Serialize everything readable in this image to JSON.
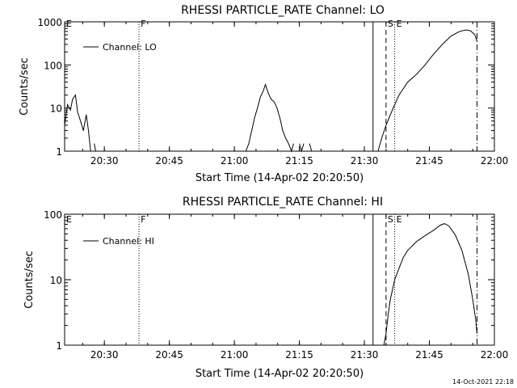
{
  "footer": {
    "timestamp": "14-Oct-2021 22:18"
  },
  "chart_data": [
    {
      "type": "line",
      "title": "RHESSI PARTICLE_RATE Channel: LO",
      "xlabel": "Start Time (14-Apr-02 20:20:50)",
      "ylabel": "Counts/sec",
      "yscale": "log",
      "ylim": [
        1,
        1000
      ],
      "xlim": [
        "20:20:50",
        "22:00:00"
      ],
      "x_tick_labels": [
        "20:30",
        "20:45",
        "21:00",
        "21:15",
        "21:30",
        "21:45",
        "22:00"
      ],
      "y_tick_labels": [
        "1",
        "10",
        "100",
        "1000"
      ],
      "legend": {
        "position": "top-left",
        "entries": [
          "Channel: LO"
        ]
      },
      "markers": [
        {
          "label": "E",
          "time": "20:20:50",
          "style": "none"
        },
        {
          "label": "F",
          "time": "20:38",
          "style": "dotted"
        },
        {
          "label": "",
          "time": "21:32",
          "style": "solid"
        },
        {
          "label": "S",
          "time": "21:35",
          "style": "dashed"
        },
        {
          "label": "E",
          "time": "21:37",
          "style": "dotted"
        },
        {
          "label": "",
          "time": "21:56",
          "style": "dashdot"
        }
      ],
      "series": [
        {
          "name": "Channel: LO",
          "color": "#000000",
          "points": [
            [
              "20:20:50",
              4
            ],
            [
              "20:21:30",
              12
            ],
            [
              "20:22:10",
              9
            ],
            [
              "20:22:40",
              16
            ],
            [
              "20:23:20",
              20
            ],
            [
              "20:23:50",
              8
            ],
            [
              "20:24:30",
              5
            ],
            [
              "20:25:10",
              3
            ],
            [
              "20:25:50",
              7
            ],
            [
              "20:26:20",
              3
            ],
            [
              "20:26:50",
              1
            ],
            null,
            [
              "20:27:40",
              1.5
            ],
            [
              "20:28:00",
              1
            ],
            null,
            [
              "21:02:40",
              1
            ],
            [
              "21:03:20",
              1.5
            ],
            [
              "21:04:00",
              3
            ],
            [
              "21:04:40",
              6
            ],
            [
              "21:05:20",
              10
            ],
            [
              "21:06:00",
              18
            ],
            [
              "21:06:40",
              25
            ],
            [
              "21:07:10",
              35
            ],
            [
              "21:07:50",
              22
            ],
            [
              "21:08:30",
              16
            ],
            [
              "21:09:10",
              14
            ],
            [
              "21:09:50",
              10
            ],
            [
              "21:10:30",
              6
            ],
            [
              "21:11:10",
              3
            ],
            [
              "21:11:50",
              2
            ],
            [
              "21:12:30",
              1.5
            ],
            [
              "21:13:10",
              1
            ],
            [
              "21:13:40",
              1.5
            ],
            null,
            [
              "21:15:00",
              1.5
            ],
            [
              "21:15:30",
              1
            ],
            [
              "21:16:00",
              1.5
            ],
            null,
            [
              "21:17:20",
              1.5
            ],
            [
              "21:17:50",
              1
            ],
            null,
            [
              "21:33:10",
              1
            ],
            [
              "21:34:00",
              2
            ],
            [
              "21:35:00",
              4
            ],
            [
              "21:36:00",
              7
            ],
            [
              "21:37:00",
              12
            ],
            [
              "21:38:00",
              20
            ],
            [
              "21:40:00",
              40
            ],
            [
              "21:42:00",
              60
            ],
            [
              "21:44:00",
              100
            ],
            [
              "21:46:00",
              180
            ],
            [
              "21:48:00",
              300
            ],
            [
              "21:50:00",
              470
            ],
            [
              "21:52:00",
              600
            ],
            [
              "21:53:30",
              650
            ],
            [
              "21:54:30",
              620
            ],
            [
              "21:55:30",
              500
            ],
            [
              "21:56:00",
              350
            ]
          ]
        }
      ]
    },
    {
      "type": "line",
      "title": "RHESSI PARTICLE_RATE Channel: HI",
      "xlabel": "Start Time (14-Apr-02 20:20:50)",
      "ylabel": "Counts/sec",
      "yscale": "log",
      "ylim": [
        1,
        100
      ],
      "xlim": [
        "20:20:50",
        "22:00:00"
      ],
      "x_tick_labels": [
        "20:30",
        "20:45",
        "21:00",
        "21:15",
        "21:30",
        "21:45",
        "22:00"
      ],
      "y_tick_labels": [
        "1",
        "10",
        "100"
      ],
      "legend": {
        "position": "top-left",
        "entries": [
          "Channel: HI"
        ]
      },
      "markers": [
        {
          "label": "E",
          "time": "20:20:50",
          "style": "none"
        },
        {
          "label": "F",
          "time": "20:38",
          "style": "dotted"
        },
        {
          "label": "",
          "time": "21:32",
          "style": "solid"
        },
        {
          "label": "S",
          "time": "21:35",
          "style": "dashed"
        },
        {
          "label": "E",
          "time": "21:37",
          "style": "dotted"
        },
        {
          "label": "",
          "time": "21:56",
          "style": "dashdot"
        }
      ],
      "series": [
        {
          "name": "Channel: HI",
          "color": "#000000",
          "points": [
            [
              "21:34:30",
              1
            ],
            [
              "21:35:00",
              1.5
            ],
            [
              "21:35:30",
              3
            ],
            [
              "21:36:00",
              5
            ],
            [
              "21:37:00",
              10
            ],
            [
              "21:38:00",
              15
            ],
            [
              "21:39:00",
              22
            ],
            [
              "21:40:00",
              28
            ],
            [
              "21:42:00",
              38
            ],
            [
              "21:44:00",
              47
            ],
            [
              "21:46:00",
              57
            ],
            [
              "21:47:30",
              68
            ],
            [
              "21:48:30",
              72
            ],
            [
              "21:49:30",
              66
            ],
            [
              "21:51:00",
              48
            ],
            [
              "21:52:30",
              28
            ],
            [
              "21:54:00",
              12
            ],
            [
              "21:55:00",
              5
            ],
            [
              "21:55:40",
              2.5
            ],
            [
              "21:56:00",
              1.5
            ]
          ]
        }
      ]
    }
  ]
}
